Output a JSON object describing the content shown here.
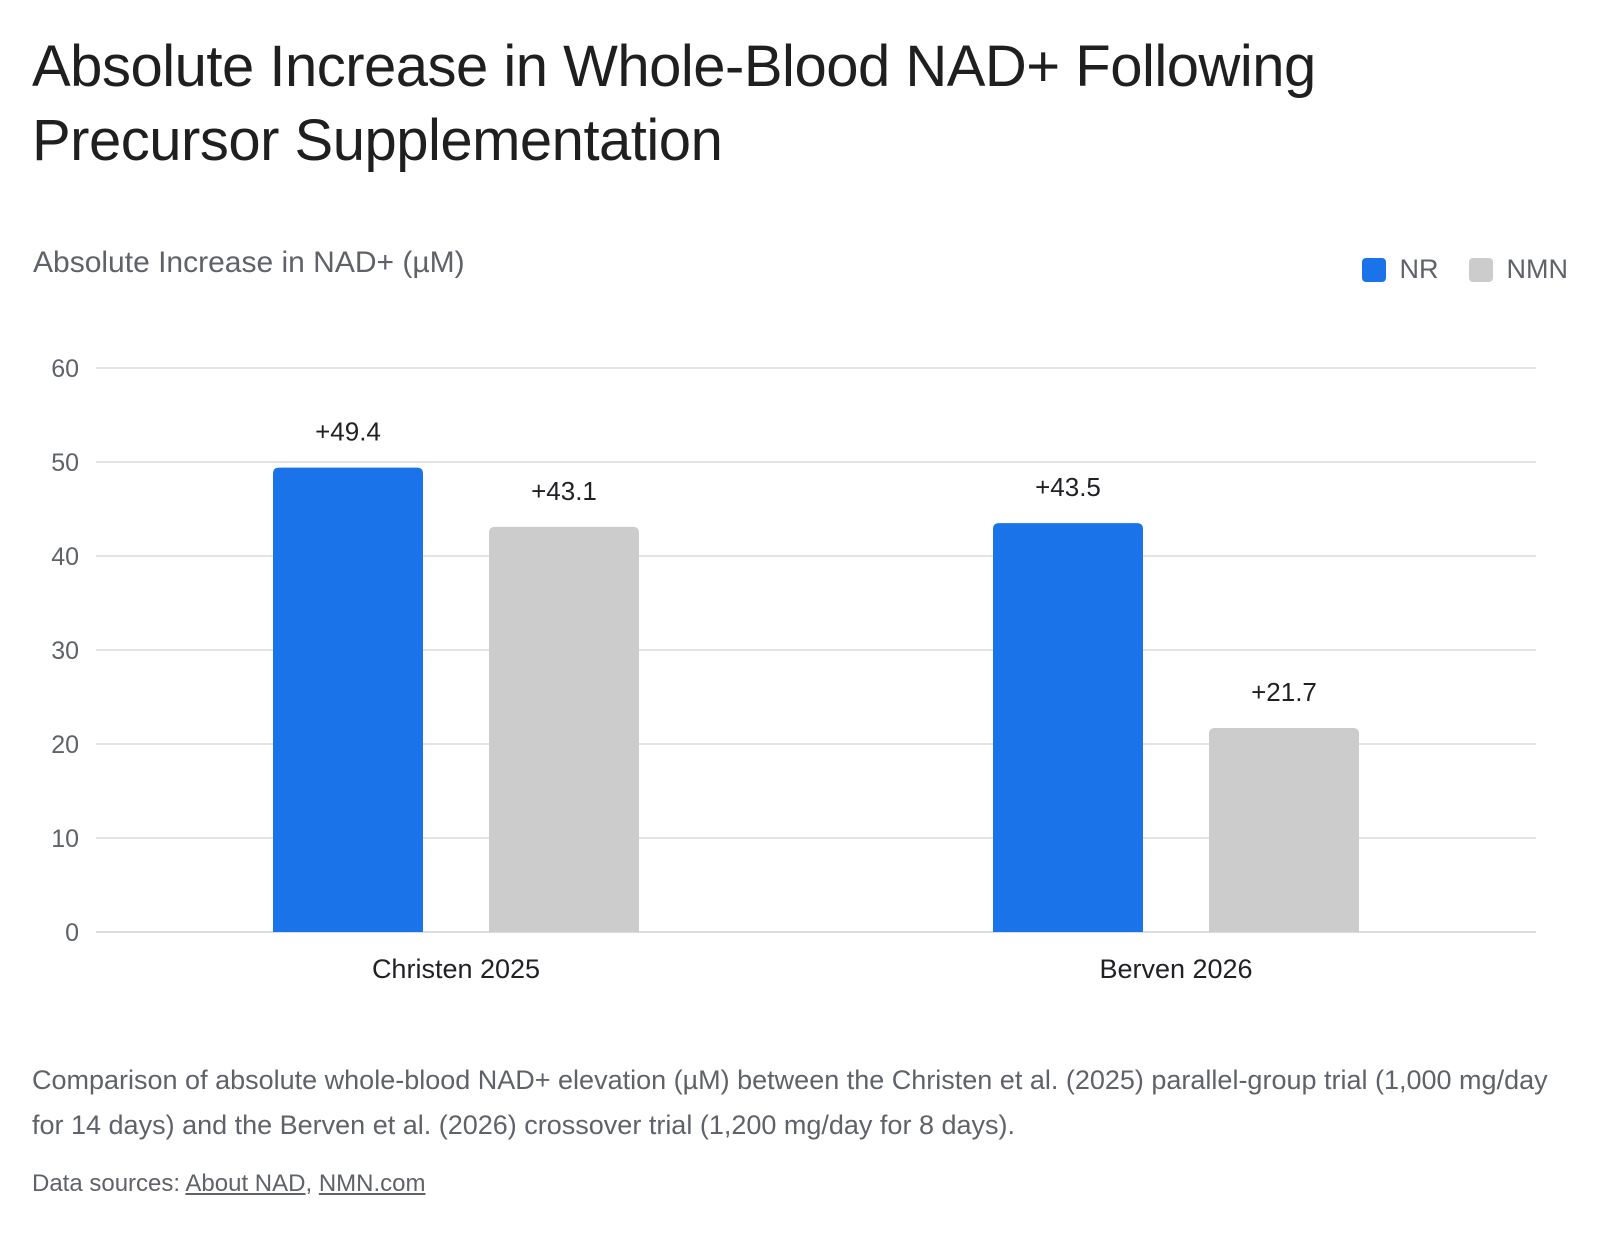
{
  "title": "Absolute Increase in Whole-Blood NAD+ Following Precursor Supplementation",
  "colors": {
    "nr": "#1a73e8",
    "nmn": "#cccccc",
    "grid": "#dadce0",
    "text": "#202124",
    "muted": "#5f6368"
  },
  "caption": "Comparison of absolute whole-blood NAD+ elevation (µM) between the Christen et al. (2025) parallel-group trial (1,000 mg/day for 14 days) and the Berven et al. (2026) crossover trial (1,200 mg/day for 8 days).",
  "sources": {
    "prefix": "Data sources: ",
    "links": [
      "About NAD",
      "NMN.com"
    ],
    "separator": ", "
  },
  "chart_data": {
    "type": "bar",
    "ylabel": "Absolute Increase in NAD+ (µM)",
    "xlabel": "",
    "categories": [
      "Christen 2025",
      "Berven 2026"
    ],
    "series": [
      {
        "name": "NR",
        "values": [
          49.4,
          43.5
        ],
        "labels": [
          "+49.4",
          "+43.5"
        ],
        "color": "#1a73e8"
      },
      {
        "name": "NMN",
        "values": [
          43.1,
          21.7
        ],
        "labels": [
          "+43.1",
          "+21.7"
        ],
        "color": "#cccccc"
      }
    ],
    "ylim": [
      0,
      60
    ],
    "yticks": [
      0,
      10,
      20,
      30,
      40,
      50,
      60
    ],
    "grid": true,
    "legend": "top-right"
  }
}
